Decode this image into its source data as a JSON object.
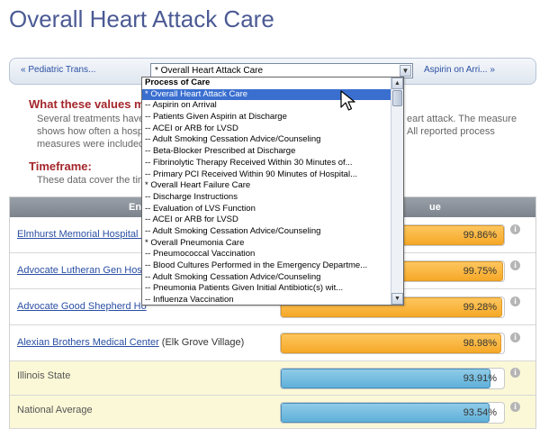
{
  "title": "Overall Heart Attack Care",
  "nav": {
    "prev_label": "« Pediatric Trans...",
    "next_label": "Aspirin on Arri... »",
    "select_value": "* Overall Heart Attack Care"
  },
  "sections": {
    "values_heading": "What these values m",
    "values_text_1": "Several treatments have",
    "values_text_1_right": "eart attack. The measure",
    "values_text_2": "shows how often a hosp",
    "values_text_2_right": "All reported process",
    "values_text_3": "measures were included",
    "timeframe_heading": "Timeframe:",
    "timeframe_text": "These data cover the tim"
  },
  "table": {
    "header_left": "En",
    "header_right": "ue",
    "rows": [
      {
        "name": "Elmhurst Memorial Hospital (",
        "city": "",
        "value": "99.86%",
        "fraction": 0.9986,
        "style": "orange",
        "link": true
      },
      {
        "name": "Advocate Lutheran Gen Hosp",
        "city": "",
        "value": "99.75%",
        "fraction": 0.9975,
        "style": "orange",
        "link": true
      },
      {
        "name": "Advocate Good Shepherd Ho",
        "city": "",
        "value": "99.28%",
        "fraction": 0.9928,
        "style": "orange",
        "link": true
      },
      {
        "name": "Alexian Brothers Medical Center",
        "city": " (Elk Grove Village)",
        "value": "98.98%",
        "fraction": 0.9898,
        "style": "orange",
        "link": true
      },
      {
        "name": "Illinois State",
        "city": "",
        "value": "93.91%",
        "fraction": 0.9391,
        "style": "blue",
        "link": false
      },
      {
        "name": "National Average",
        "city": "",
        "value": "93.54%",
        "fraction": 0.9354,
        "style": "blue",
        "link": false
      }
    ]
  },
  "dropdown": {
    "options": [
      {
        "label": "Process of Care",
        "type": "group"
      },
      {
        "label": "* Overall Heart Attack Care",
        "type": "selected"
      },
      {
        "label": "-- Aspirin on Arrival",
        "type": "option"
      },
      {
        "label": "-- Patients Given Aspirin at Discharge",
        "type": "option"
      },
      {
        "label": "-- ACEI or ARB for LVSD",
        "type": "option"
      },
      {
        "label": "-- Adult Smoking Cessation Advice/Counseling",
        "type": "option"
      },
      {
        "label": "-- Beta-Blocker Prescribed at Discharge",
        "type": "option"
      },
      {
        "label": "-- Fibrinolytic Therapy Received Within 30 Minutes of...",
        "type": "option"
      },
      {
        "label": "-- Primary PCI Received Within 90 Minutes of Hospital...",
        "type": "option"
      },
      {
        "label": "* Overall Heart Failure Care",
        "type": "option"
      },
      {
        "label": "-- Discharge Instructions",
        "type": "option"
      },
      {
        "label": "-- Evaluation of LVS Function",
        "type": "option"
      },
      {
        "label": "-- ACEI or ARB for LVSD",
        "type": "option"
      },
      {
        "label": "-- Adult Smoking Cessation Advice/Counseling",
        "type": "option"
      },
      {
        "label": "* Overall Pneumonia Care",
        "type": "option"
      },
      {
        "label": "-- Pneumococcal Vaccination",
        "type": "option"
      },
      {
        "label": "-- Blood Cultures Performed in the Emergency Departme...",
        "type": "option"
      },
      {
        "label": "-- Adult Smoking Cessation Advice/Counseling",
        "type": "option"
      },
      {
        "label": "-- Pneumonia Patients Given Initial Antibiotic(s) wit...",
        "type": "option"
      },
      {
        "label": "-- Influenza Vaccination",
        "type": "option"
      }
    ]
  },
  "colors": {
    "title": "#4b5a94",
    "heading": "#a3262b",
    "link": "#2a4fa3",
    "bar_orange": "#f6a928",
    "bar_blue": "#5fb0d9",
    "selection": "#3a6fd0"
  }
}
